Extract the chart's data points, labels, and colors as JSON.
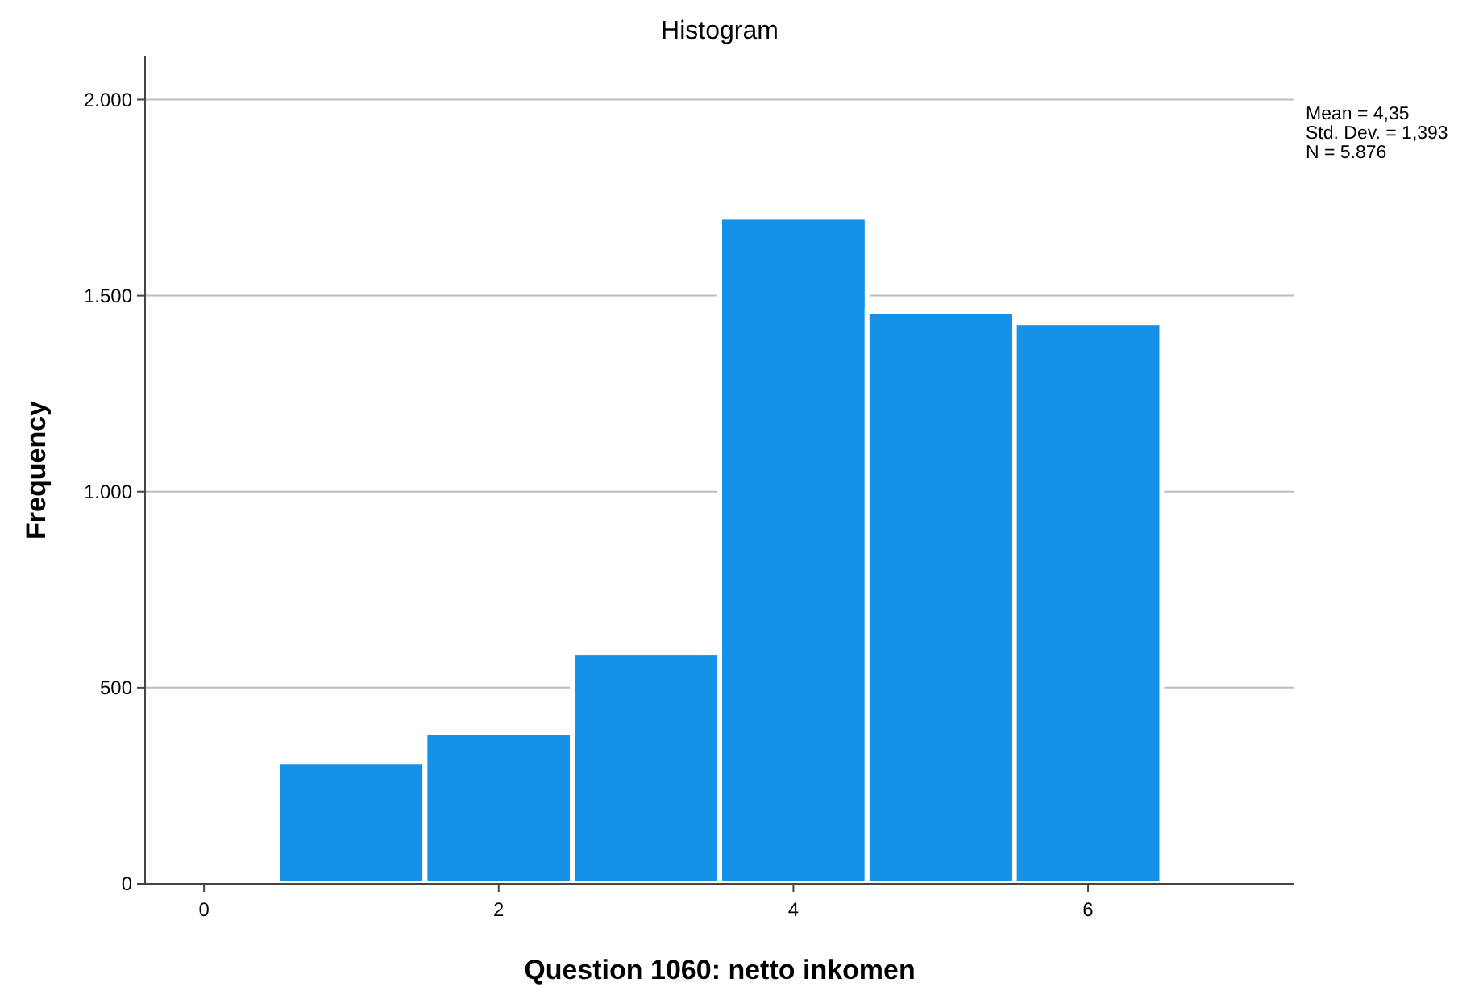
{
  "chart_data": {
    "type": "histogram",
    "title": "Histogram",
    "xlabel": "Question 1060: netto inkomen",
    "ylabel": "Frequency",
    "bins": [
      0.5,
      1.5,
      2.5,
      3.5,
      4.5,
      5.5,
      6.5
    ],
    "values": [
      310,
      385,
      590,
      1700,
      1460,
      1431
    ],
    "color": "#1591e8",
    "xlim": [
      -0.4,
      7.4
    ],
    "xticks": [
      0,
      2,
      4,
      6
    ],
    "ylim": [
      0,
      2110
    ],
    "yticks": [
      0,
      500,
      {
        "value": 1000,
        "label": "1.000"
      },
      {
        "value": 1500,
        "label": "1.500"
      },
      {
        "value": 2000,
        "label": "2.000"
      }
    ],
    "grid": "y",
    "annotations": [
      "Mean = 4,35",
      "Std. Dev. = 1,393",
      "N = 5.876"
    ]
  }
}
